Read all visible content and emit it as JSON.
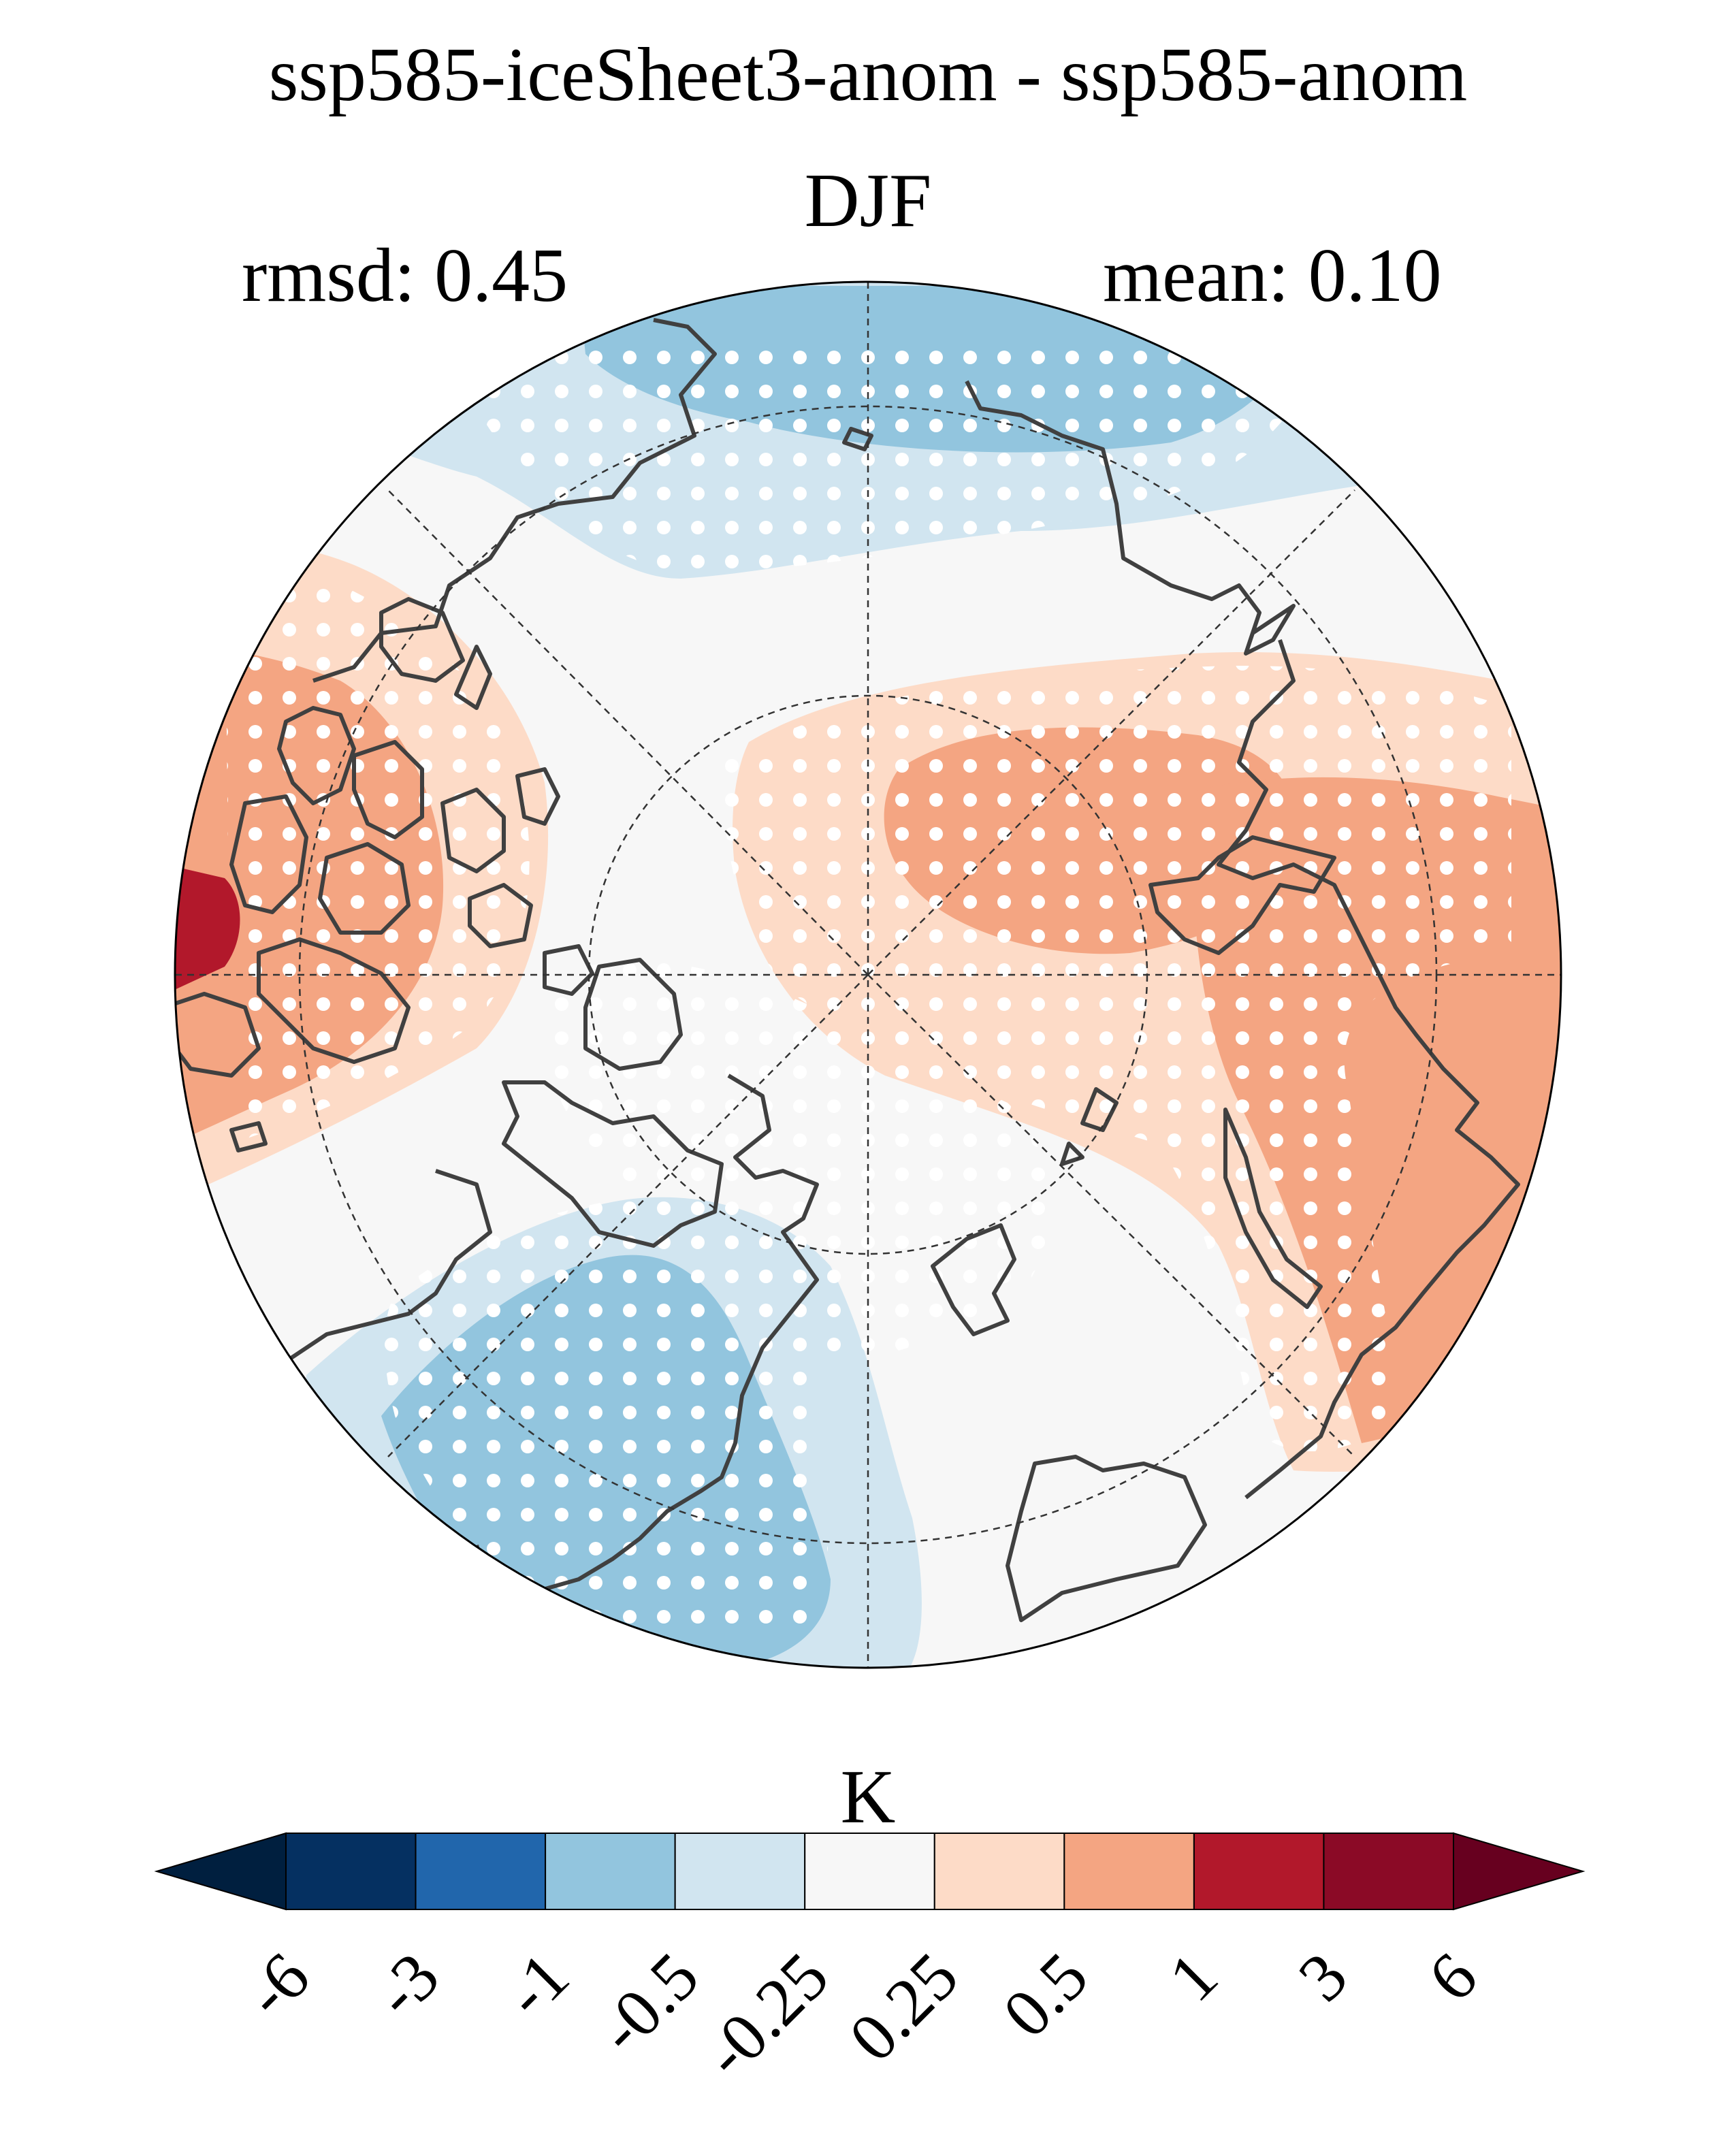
{
  "title": "ssp585-iceSheet3-anom - ssp585-anom",
  "subtitle": "DJF",
  "stats": {
    "rmsd": "rmsd: 0.45",
    "mean": "mean: 0.10"
  },
  "colorbar": {
    "unit": "K",
    "ticks": [
      "-6",
      "-3",
      "-1",
      "-0.5",
      "-0.25",
      "0.25",
      "0.5",
      "1",
      "3",
      "6"
    ],
    "colors": [
      "#053061",
      "#2166ac",
      "#92c5de",
      "#d1e5f0",
      "#f7f7f7",
      "#fddbc7",
      "#f4a582",
      "#b2182b",
      "#8b0a26"
    ],
    "extend_low": "#001f3f",
    "extend_high": "#67001f"
  }
}
